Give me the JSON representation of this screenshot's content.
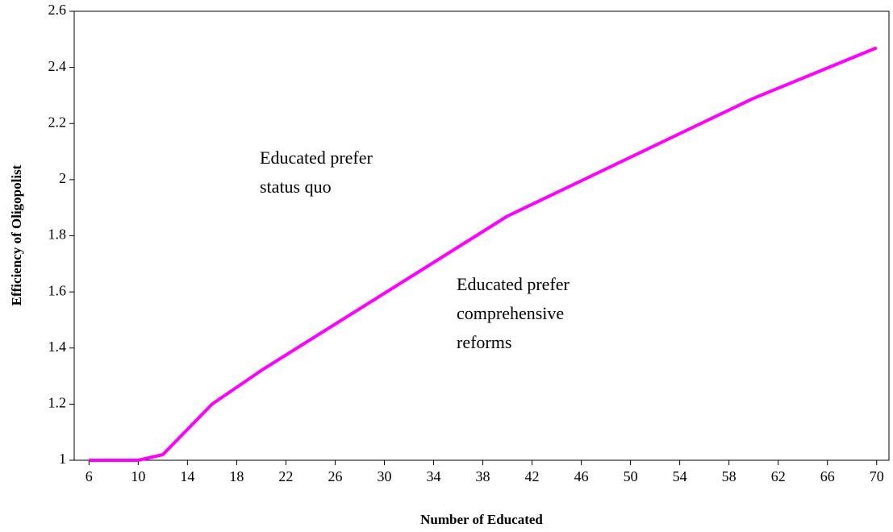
{
  "chart_data": {
    "type": "line",
    "x_label": "Number of Educated",
    "y_label": "Efficiency of Oligopolist",
    "x": [
      6,
      10,
      12,
      16,
      20,
      40,
      60,
      70
    ],
    "series": [
      {
        "name": "Efficiency of Oligopolist",
        "color": "#ff00ff",
        "values": [
          1,
          1,
          1.02,
          1.2,
          1.32,
          1.87,
          2.29,
          2.47
        ]
      }
    ],
    "xlim": [
      4.8,
      71
    ],
    "xticks": [
      6,
      10,
      14,
      18,
      22,
      26,
      30,
      34,
      38,
      42,
      46,
      50,
      54,
      58,
      62,
      66,
      70
    ],
    "ylim": [
      1,
      2.6
    ],
    "yticks": [
      1,
      1.2,
      1.4,
      1.6,
      1.8,
      2,
      2.2,
      2.4,
      2.6
    ],
    "annotations": [
      {
        "lines": [
          "Educated  prefer",
          "status quo"
        ]
      },
      {
        "lines": [
          "Educated prefer",
          "comprehensive",
          "reforms"
        ]
      }
    ]
  }
}
